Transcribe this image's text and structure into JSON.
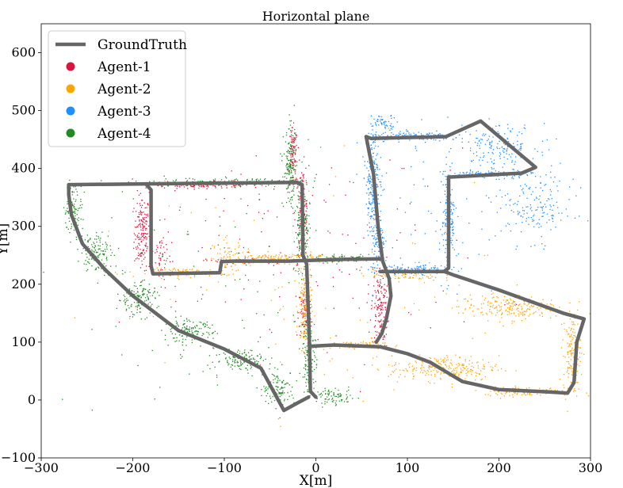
{
  "chart_data": {
    "type": "scatter",
    "title": "Horizontal plane",
    "xlabel": "X[m]",
    "ylabel": "Y[m]",
    "xlim": [
      -300,
      300
    ],
    "ylim": [
      -100,
      650
    ],
    "xticks": [
      -300,
      -200,
      -100,
      0,
      100,
      200,
      300
    ],
    "yticks": [
      -100,
      0,
      100,
      200,
      300,
      400,
      500,
      600
    ],
    "xtick_labels": [
      "−300",
      "−200",
      "−100",
      "0",
      "100",
      "200",
      "300"
    ],
    "ytick_labels": [
      "−100",
      "0",
      "100",
      "200",
      "300",
      "400",
      "500",
      "600"
    ],
    "grid": false,
    "legend_position": "top-left",
    "series": [
      {
        "name": "GroundTruth",
        "kind": "line",
        "color": "#666666",
        "paths": [
          [
            [
              -270,
              372
            ],
            [
              -20,
              376
            ],
            [
              -15,
              372
            ],
            [
              -14,
              250
            ],
            [
              -10,
              235
            ],
            [
              -7,
              100
            ],
            [
              -6,
              15
            ],
            [
              0,
              5
            ]
          ],
          [
            [
              -270,
              372
            ],
            [
              -270,
              355
            ],
            [
              -267,
              320
            ],
            [
              -255,
              270
            ],
            [
              -230,
              225
            ],
            [
              -200,
              180
            ],
            [
              -150,
              120
            ],
            [
              -100,
              88
            ],
            [
              -60,
              55
            ],
            [
              -35,
              -18
            ],
            [
              -20,
              -5
            ],
            [
              -8,
              5
            ]
          ],
          [
            [
              -185,
              372
            ],
            [
              -180,
              363
            ],
            [
              -180,
              232
            ],
            [
              -178,
              218
            ],
            [
              -105,
              220
            ],
            [
              -103,
              239
            ],
            [
              -90,
              240
            ],
            [
              -30,
              240
            ],
            [
              30,
              243
            ],
            [
              70,
              244
            ]
          ],
          [
            [
              55,
              455
            ],
            [
              60,
              452
            ],
            [
              142,
              455
            ],
            [
              180,
              482
            ],
            [
              240,
              402
            ],
            [
              225,
              392
            ],
            [
              145,
              385
            ],
            [
              145,
              228
            ],
            [
              140,
              222
            ],
            [
              70,
              222
            ]
          ],
          [
            [
              55,
              455
            ],
            [
              58,
              430
            ],
            [
              63,
              390
            ],
            [
              68,
              300
            ],
            [
              73,
              240
            ],
            [
              80,
              210
            ],
            [
              82,
              180
            ],
            [
              77,
              140
            ],
            [
              72,
              115
            ],
            [
              66,
              100
            ]
          ],
          [
            [
              -5,
              93
            ],
            [
              20,
              95
            ],
            [
              70,
              92
            ],
            [
              100,
              80
            ],
            [
              125,
              65
            ],
            [
              160,
              32
            ],
            [
              200,
              18
            ],
            [
              255,
              14
            ],
            [
              275,
              12
            ],
            [
              282,
              30
            ],
            [
              285,
              100
            ],
            [
              293,
              140
            ],
            [
              270,
              150
            ],
            [
              200,
              190
            ],
            [
              152,
              215
            ],
            [
              140,
              222
            ]
          ]
        ]
      },
      {
        "name": "Agent-1",
        "kind": "scatter",
        "color": "#dc143c",
        "clusters": [
          {
            "center": [
              -190,
              290
            ],
            "spread": [
              7,
              55
            ],
            "count": 160
          },
          {
            "center": [
              -170,
              250
            ],
            "spread": [
              10,
              45
            ],
            "count": 60
          },
          {
            "center": [
              -120,
              372
            ],
            "spread": [
              55,
              5
            ],
            "count": 150
          },
          {
            "center": [
              -25,
              420
            ],
            "spread": [
              4,
              40
            ],
            "count": 90
          },
          {
            "center": [
              -15,
              320
            ],
            "spread": [
              6,
              70
            ],
            "count": 130
          },
          {
            "center": [
              -12,
              150
            ],
            "spread": [
              6,
              40
            ],
            "count": 70
          },
          {
            "center": [
              70,
              160
            ],
            "spread": [
              8,
              60
            ],
            "count": 160
          },
          {
            "center": [
              -90,
              240
            ],
            "spread": [
              25,
              4
            ],
            "count": 40
          },
          {
            "center": [
              0,
              250
            ],
            "spread": [
              160,
              150
            ],
            "count": 110
          }
        ]
      },
      {
        "name": "Agent-2",
        "kind": "scatter",
        "color": "#ffa500",
        "clusters": [
          {
            "center": [
              -140,
              220
            ],
            "spread": [
              35,
              6
            ],
            "count": 110
          },
          {
            "center": [
              -95,
              248
            ],
            "spread": [
              15,
              25
            ],
            "count": 60
          },
          {
            "center": [
              -40,
              245
            ],
            "spread": [
              50,
              7
            ],
            "count": 140
          },
          {
            "center": [
              -12,
              160
            ],
            "spread": [
              6,
              60
            ],
            "count": 160
          },
          {
            "center": [
              40,
              95
            ],
            "spread": [
              28,
              5
            ],
            "count": 90
          },
          {
            "center": [
              140,
              55
            ],
            "spread": [
              50,
              18
            ],
            "count": 240
          },
          {
            "center": [
              230,
              15
            ],
            "spread": [
              40,
              6
            ],
            "count": 150
          },
          {
            "center": [
              280,
              80
            ],
            "spread": [
              8,
              55
            ],
            "count": 150
          },
          {
            "center": [
              210,
              160
            ],
            "spread": [
              45,
              18
            ],
            "count": 220
          },
          {
            "center": [
              100,
              215
            ],
            "spread": [
              30,
              8
            ],
            "count": 70
          },
          {
            "center": [
              0,
              200
            ],
            "spread": [
              200,
              200
            ],
            "count": 80
          }
        ]
      },
      {
        "name": "Agent-3",
        "kind": "scatter",
        "color": "#1e90ff",
        "clusters": [
          {
            "center": [
              62,
              380
            ],
            "spread": [
              6,
              75
            ],
            "count": 220
          },
          {
            "center": [
              68,
              270
            ],
            "spread": [
              6,
              35
            ],
            "count": 90
          },
          {
            "center": [
              110,
              455
            ],
            "spread": [
              45,
              6
            ],
            "count": 160
          },
          {
            "center": [
              200,
              440
            ],
            "spread": [
              35,
              30
            ],
            "count": 160
          },
          {
            "center": [
              240,
              330
            ],
            "spread": [
              35,
              45
            ],
            "count": 150
          },
          {
            "center": [
              145,
              310
            ],
            "spread": [
              6,
              70
            ],
            "count": 160
          },
          {
            "center": [
              190,
              390
            ],
            "spread": [
              40,
              6
            ],
            "count": 110
          },
          {
            "center": [
              105,
              225
            ],
            "spread": [
              35,
              6
            ],
            "count": 120
          },
          {
            "center": [
              75,
              480
            ],
            "spread": [
              12,
              10
            ],
            "count": 50
          },
          {
            "center": [
              150,
              350
            ],
            "spread": [
              110,
              120
            ],
            "count": 90
          }
        ]
      },
      {
        "name": "Agent-4",
        "kind": "scatter",
        "color": "#228b22",
        "clusters": [
          {
            "center": [
              -265,
              330
            ],
            "spread": [
              8,
              35
            ],
            "count": 110
          },
          {
            "center": [
              -240,
              255
            ],
            "spread": [
              14,
              30
            ],
            "count": 130
          },
          {
            "center": [
              -195,
              175
            ],
            "spread": [
              18,
              25
            ],
            "count": 140
          },
          {
            "center": [
              -140,
              118
            ],
            "spread": [
              22,
              16
            ],
            "count": 140
          },
          {
            "center": [
              -80,
              70
            ],
            "spread": [
              25,
              15
            ],
            "count": 130
          },
          {
            "center": [
              -40,
              20
            ],
            "spread": [
              15,
              25
            ],
            "count": 110
          },
          {
            "center": [
              -90,
              376
            ],
            "spread": [
              80,
              6
            ],
            "count": 160
          },
          {
            "center": [
              -28,
              400
            ],
            "spread": [
              6,
              55
            ],
            "count": 150
          },
          {
            "center": [
              -15,
              290
            ],
            "spread": [
              7,
              60
            ],
            "count": 130
          },
          {
            "center": [
              -7,
              80
            ],
            "spread": [
              6,
              55
            ],
            "count": 150
          },
          {
            "center": [
              20,
              5
            ],
            "spread": [
              18,
              12
            ],
            "count": 80
          },
          {
            "center": [
              30,
              244
            ],
            "spread": [
              35,
              5
            ],
            "count": 100
          },
          {
            "center": [
              -120,
              200
            ],
            "spread": [
              150,
              180
            ],
            "count": 120
          }
        ]
      }
    ]
  }
}
